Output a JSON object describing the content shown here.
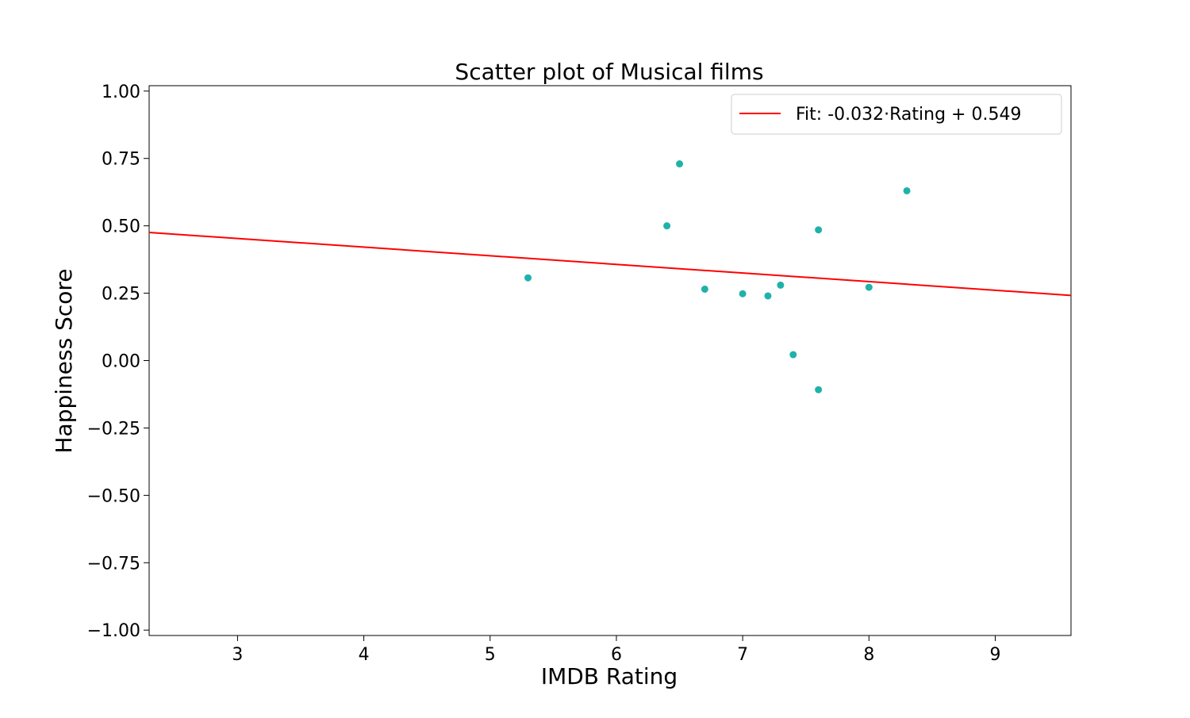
{
  "chart_data": {
    "type": "scatter",
    "title": "Scatter plot of Musical films",
    "xlabel": "IMDB Rating",
    "ylabel": "Happiness Score",
    "xlim": [
      2.3,
      9.6
    ],
    "ylim": [
      -1.02,
      1.02
    ],
    "xticks": [
      3,
      4,
      5,
      6,
      7,
      8,
      9
    ],
    "xtick_labels": [
      "3",
      "4",
      "5",
      "6",
      "7",
      "8",
      "9"
    ],
    "yticks": [
      1.0,
      0.75,
      0.5,
      0.25,
      0.0,
      -0.25,
      -0.5,
      -0.75,
      -1.0
    ],
    "ytick_labels": [
      "1.00",
      "0.75",
      "0.50",
      "0.25",
      "0.00",
      "−0.25",
      "−0.50",
      "−0.75",
      "−1.00"
    ],
    "grid": false,
    "legend_position": "top-right",
    "series": [
      {
        "type": "scatter",
        "color": "#20b2aa",
        "points": [
          {
            "x": 5.3,
            "y": 0.307
          },
          {
            "x": 6.4,
            "y": 0.5
          },
          {
            "x": 6.5,
            "y": 0.73
          },
          {
            "x": 6.7,
            "y": 0.265
          },
          {
            "x": 7.0,
            "y": 0.248
          },
          {
            "x": 7.2,
            "y": 0.24
          },
          {
            "x": 7.3,
            "y": 0.28
          },
          {
            "x": 7.4,
            "y": 0.022
          },
          {
            "x": 7.6,
            "y": 0.485
          },
          {
            "x": 7.6,
            "y": -0.108
          },
          {
            "x": 8.0,
            "y": 0.272
          },
          {
            "x": 8.3,
            "y": 0.63
          }
        ]
      },
      {
        "type": "line",
        "name": "Fit: -0.032·Rating + 0.549",
        "color": "#ff0000",
        "slope": -0.032,
        "intercept": 0.549
      }
    ]
  }
}
